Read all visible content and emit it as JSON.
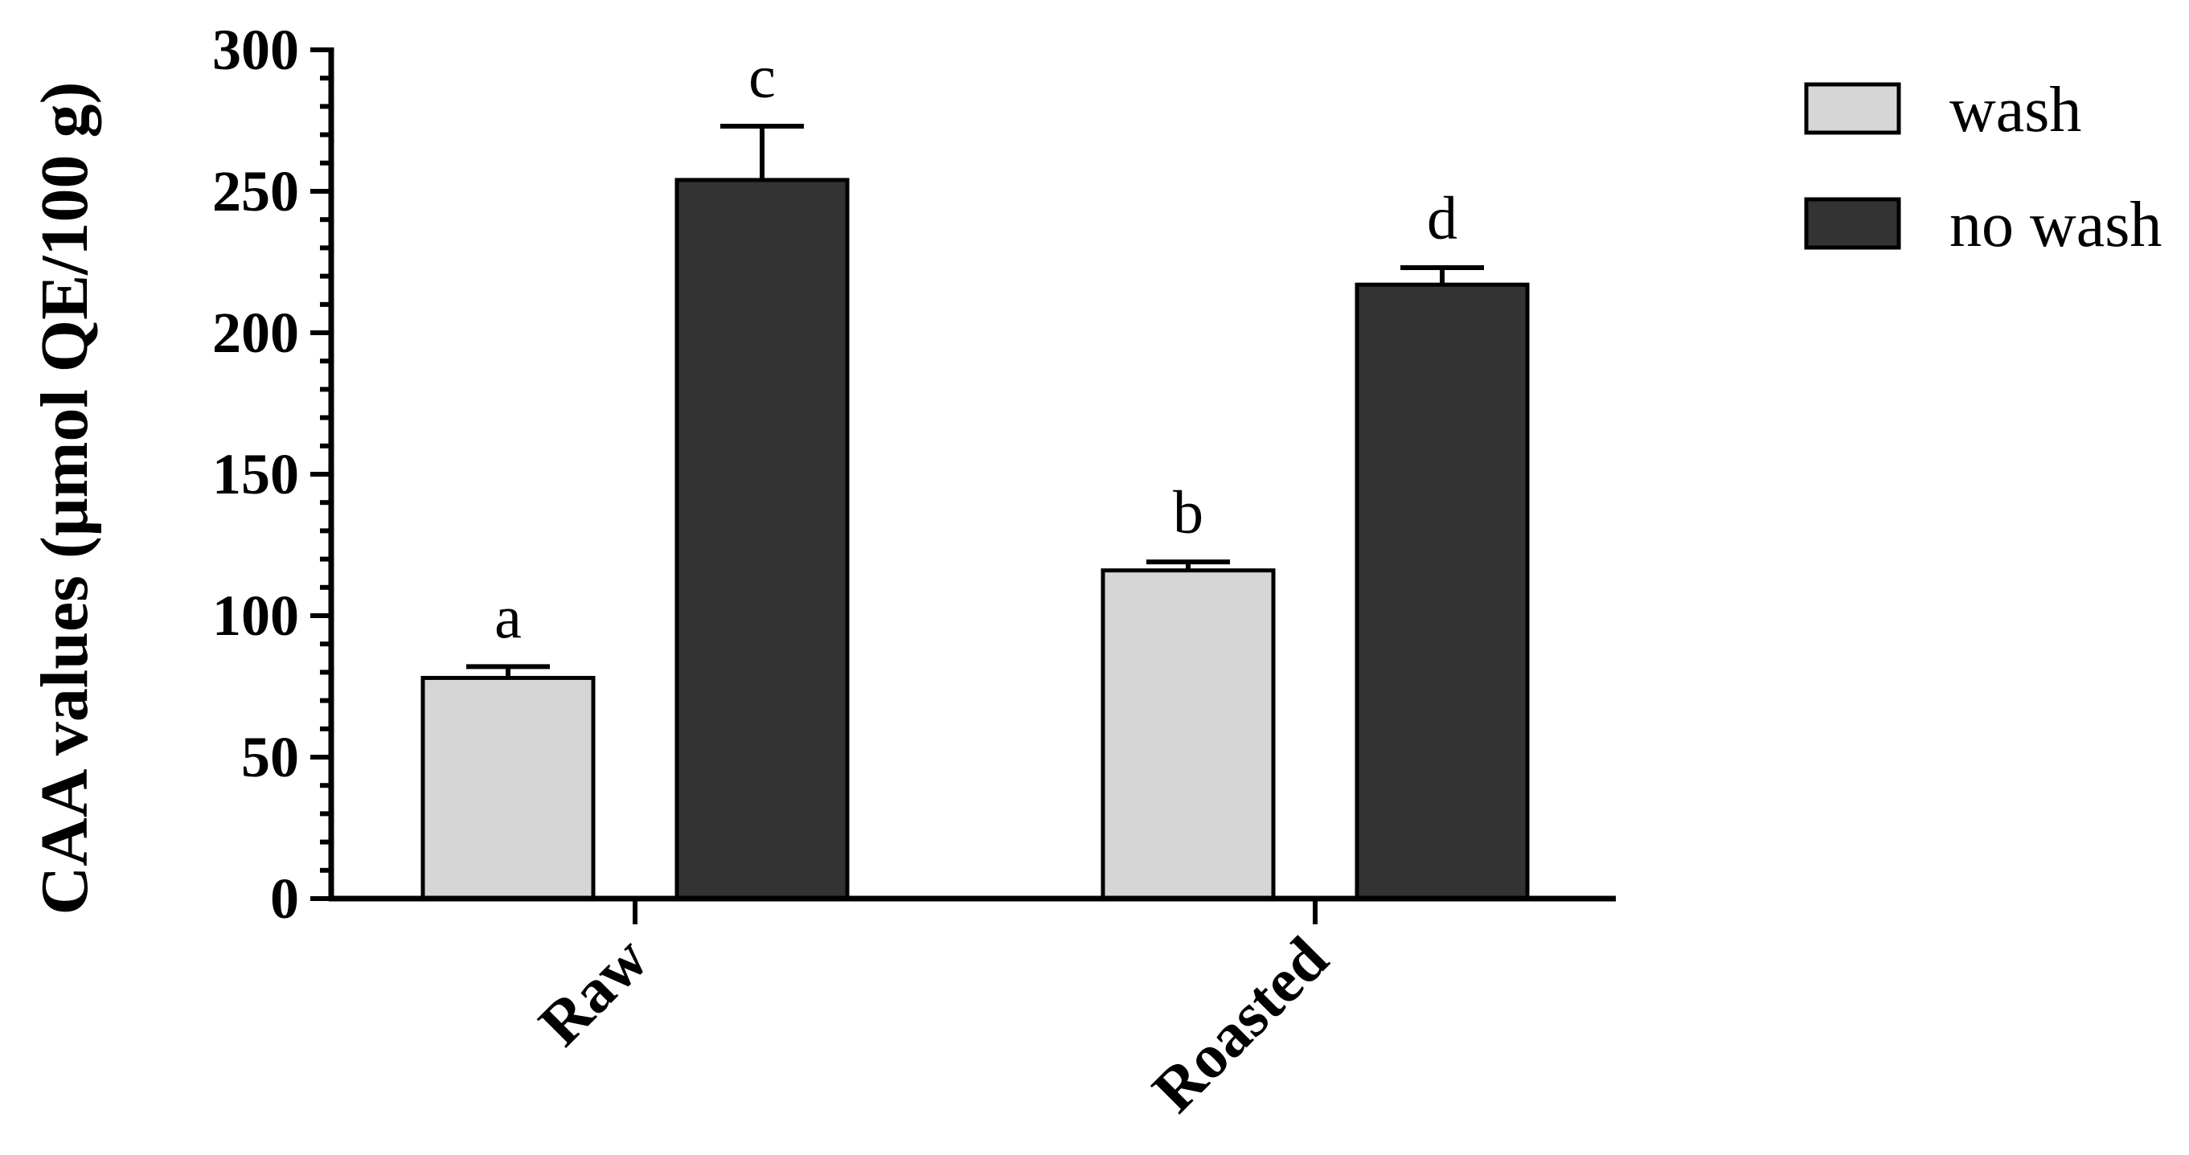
{
  "chart_data": {
    "type": "bar",
    "categories": [
      "Raw",
      "Roasted"
    ],
    "series": [
      {
        "name": "wash",
        "values": [
          78,
          116
        ],
        "errors": [
          4,
          3
        ],
        "color": "#d6d6d6",
        "labels": [
          "a",
          "b"
        ]
      },
      {
        "name": "no wash",
        "values": [
          254,
          217
        ],
        "errors": [
          19,
          6
        ],
        "color": "#333333",
        "labels": [
          "c",
          "d"
        ]
      }
    ],
    "ylabel": "CAA values (μmol QE/100 g)",
    "xlabel": "",
    "ylim": [
      0,
      300
    ],
    "yticks": [
      0,
      50,
      100,
      150,
      200,
      250,
      300
    ],
    "grid": false,
    "legend_position": "top-right"
  }
}
